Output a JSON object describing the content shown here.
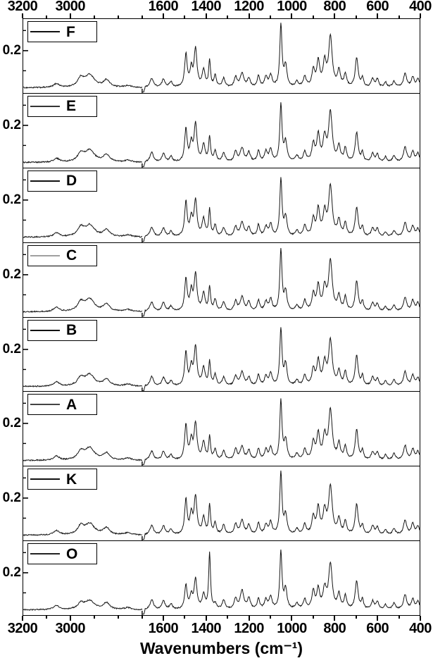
{
  "figure": {
    "y_tick_label": "0.2",
    "x_axis_title": "Wavenumbers (cm⁻¹)"
  },
  "chart_data": {
    "type": "line",
    "title": "",
    "xlabel": "Wavenumbers (cm⁻¹)",
    "ylabel": "",
    "x_ticks": [
      3200,
      3000,
      1600,
      1400,
      1200,
      1000,
      800,
      600,
      400
    ],
    "x_segments": [
      {
        "from": 3200,
        "to": 2700,
        "frac": 0.3
      },
      {
        "from": 1700,
        "to": 400,
        "frac": 0.7
      }
    ],
    "x_minor_step": 100,
    "y_tick": 0.2,
    "ymax": 0.34,
    "baseline": 0.015,
    "noise": 0.003,
    "line_color": "#151515",
    "peaks": [
      [
        3060,
        0.02,
        14
      ],
      [
        2958,
        0.042,
        16
      ],
      [
        2920,
        0.058,
        24
      ],
      [
        2850,
        0.034,
        16
      ],
      [
        2760,
        0.01,
        18
      ],
      [
        1655,
        0.048,
        10
      ],
      [
        1600,
        0.042,
        9
      ],
      [
        1565,
        0.026,
        8
      ],
      [
        1495,
        0.165,
        7
      ],
      [
        1470,
        0.09,
        7
      ],
      [
        1450,
        0.185,
        8
      ],
      [
        1412,
        0.085,
        8
      ],
      [
        1384,
        0.125,
        5
      ],
      [
        1358,
        0.055,
        7
      ],
      [
        1318,
        0.045,
        8
      ],
      [
        1262,
        0.05,
        8
      ],
      [
        1232,
        0.068,
        10
      ],
      [
        1200,
        0.045,
        8
      ],
      [
        1155,
        0.055,
        7
      ],
      [
        1120,
        0.048,
        8
      ],
      [
        1098,
        0.058,
        8
      ],
      [
        1050,
        0.29,
        6
      ],
      [
        1028,
        0.1,
        8
      ],
      [
        975,
        0.028,
        8
      ],
      [
        938,
        0.05,
        8
      ],
      [
        898,
        0.085,
        8
      ],
      [
        875,
        0.125,
        8
      ],
      [
        845,
        0.115,
        9
      ],
      [
        818,
        0.235,
        10
      ],
      [
        778,
        0.075,
        8
      ],
      [
        748,
        0.065,
        7
      ],
      [
        695,
        0.15,
        8
      ],
      [
        668,
        0.045,
        6
      ],
      [
        620,
        0.042,
        8
      ],
      [
        598,
        0.038,
        7
      ],
      [
        560,
        0.024,
        7
      ],
      [
        520,
        0.03,
        8
      ],
      [
        468,
        0.07,
        9
      ],
      [
        432,
        0.052,
        8
      ],
      [
        408,
        0.04,
        8
      ]
    ],
    "series": [
      {
        "name": "F",
        "legend_color": "#111111",
        "peak_scale": {}
      },
      {
        "name": "E",
        "legend_color": "#333333",
        "peak_scale": {
          "2920": 1.05
        }
      },
      {
        "name": "D",
        "legend_color": "#111111",
        "peak_scale": {}
      },
      {
        "name": "C",
        "legend_color": "#a0a0a0",
        "peak_scale": {}
      },
      {
        "name": "B",
        "legend_color": "#111111",
        "peak_scale": {}
      },
      {
        "name": "A",
        "legend_color": "#444444",
        "peak_scale": {
          "1384": 0.95
        }
      },
      {
        "name": "K",
        "legend_color": "#111111",
        "peak_scale": {
          "1384": 1.1,
          "2920": 0.9
        }
      },
      {
        "name": "O",
        "legend_color": "#222222",
        "peak_scale": {
          "1384": 2.3,
          "1358": 0.5,
          "1495": 0.72,
          "1470": 0.7,
          "1450": 0.78,
          "1412": 0.8,
          "875": 0.8,
          "845": 0.8,
          "818": 0.9,
          "2920": 0.75,
          "2958": 0.7,
          "695": 0.9,
          "1232": 1.3,
          "1200": 1.2
        }
      }
    ]
  }
}
